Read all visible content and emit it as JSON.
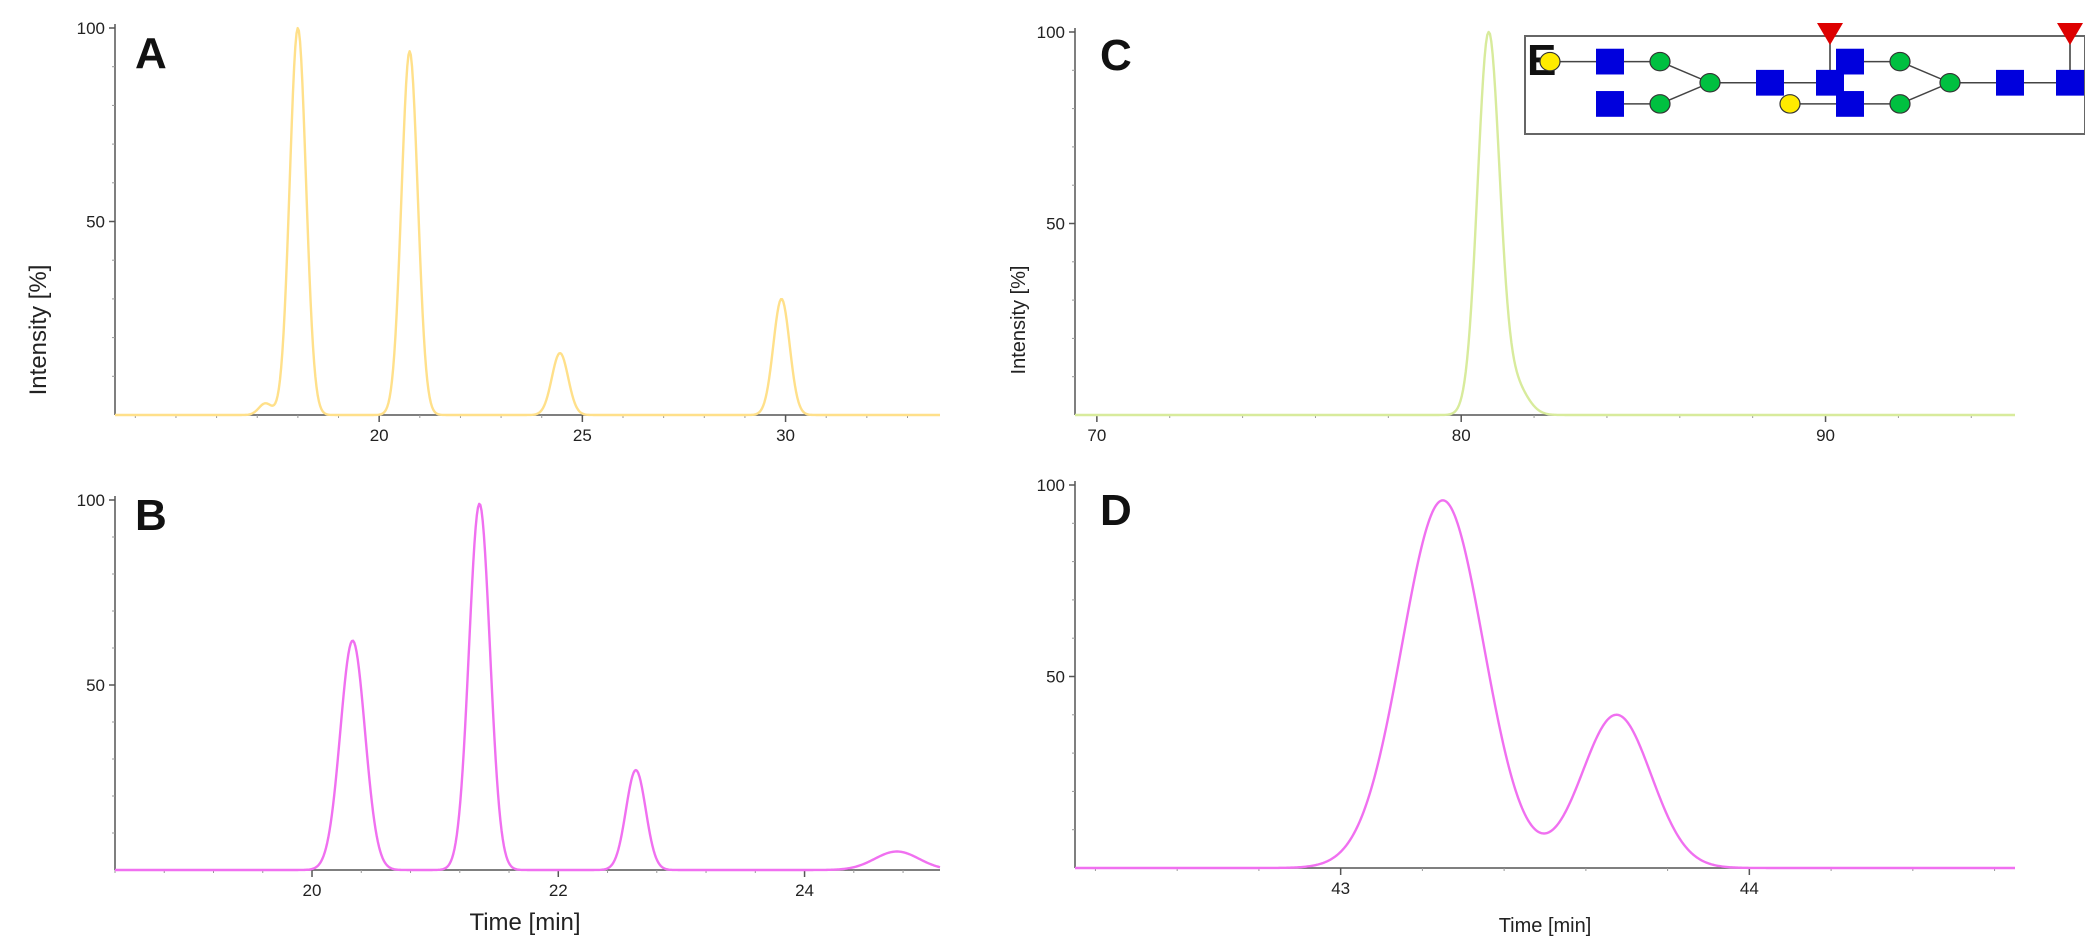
{
  "figure": {
    "ylabel_left": "Intensity [%]",
    "ylabel_right": "Intensity [%]",
    "xlabel_left": "Time [min]",
    "xlabel_right": "Time [min]",
    "inset_letter": "E"
  },
  "chart_data": [
    {
      "id": "A",
      "letter": "A",
      "type": "line",
      "color": "#FFE08A",
      "xlim": [
        13.5,
        33.8
      ],
      "ylim": [
        0,
        100
      ],
      "xticks": [
        20,
        25,
        30
      ],
      "xtick_labels": [
        "20",
        "25",
        "30"
      ],
      "yticks": [
        50,
        100
      ],
      "ytick_labels": [
        "50",
        "100"
      ],
      "peaks": [
        {
          "x": 17.2,
          "h": 3,
          "w": 0.16
        },
        {
          "x": 18.0,
          "h": 100,
          "w": 0.2
        },
        {
          "x": 20.75,
          "h": 94,
          "w": 0.2
        },
        {
          "x": 24.45,
          "h": 16,
          "w": 0.2
        },
        {
          "x": 29.9,
          "h": 30,
          "w": 0.2
        }
      ]
    },
    {
      "id": "B",
      "letter": "B",
      "type": "line",
      "color": "#F070F0",
      "xlim": [
        18.4,
        25.1
      ],
      "ylim": [
        0,
        100
      ],
      "xticks": [
        20,
        22,
        24
      ],
      "xtick_labels": [
        "20",
        "22",
        "24"
      ],
      "yticks": [
        50,
        100
      ],
      "ytick_labels": [
        "50",
        "100"
      ],
      "peaks": [
        {
          "x": 20.33,
          "h": 62,
          "w": 0.1
        },
        {
          "x": 21.36,
          "h": 99,
          "w": 0.085
        },
        {
          "x": 22.63,
          "h": 27,
          "w": 0.08
        },
        {
          "x": 24.75,
          "h": 5,
          "w": 0.18
        }
      ]
    },
    {
      "id": "C",
      "letter": "C",
      "type": "line",
      "color": "#D8EB9C",
      "xlim": [
        69.4,
        95.2
      ],
      "ylim": [
        0,
        100
      ],
      "xticks": [
        70,
        80,
        90
      ],
      "xtick_labels": [
        "70",
        "80",
        "90"
      ],
      "yticks": [
        50,
        100
      ],
      "ytick_labels": [
        "50",
        "100"
      ],
      "peaks": [
        {
          "x": 80.75,
          "h": 99,
          "w": 0.3
        },
        {
          "x": 81.45,
          "h": 8,
          "w": 0.35
        }
      ]
    },
    {
      "id": "D",
      "letter": "D",
      "type": "line",
      "color": "#F070F0",
      "xlim": [
        42.35,
        44.65
      ],
      "ylim": [
        0,
        100
      ],
      "xticks": [
        43,
        44
      ],
      "xtick_labels": [
        "43",
        "44"
      ],
      "yticks": [
        50,
        100
      ],
      "ytick_labels": [
        "50",
        "100"
      ],
      "peaks": [
        {
          "x": 43.25,
          "h": 96,
          "w": 0.1
        },
        {
          "x": 43.675,
          "h": 40,
          "w": 0.085
        }
      ]
    }
  ],
  "glycans": {
    "colors": {
      "galactose": "#FFEB00",
      "glcnac": "#0000DD",
      "mannose": "#00C040",
      "fucose": "#DD0000"
    },
    "structures": [
      "galactose-upper-arm",
      "galactose-lower-arm"
    ]
  }
}
